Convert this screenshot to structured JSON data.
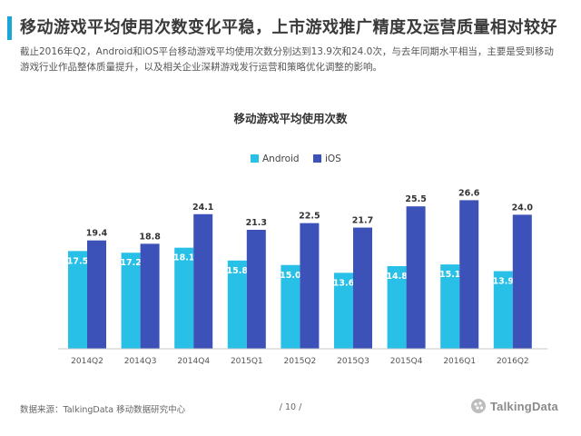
{
  "header": {
    "title": "移动游戏平均使用次数变化平稳，上市游戏推广精度及运营质量相对较好",
    "description": "截止2016年Q2，Android和iOS平台移动游戏平均使用次数分别达到13.9次和24.0次，与去年同期水平相当，主要是受到移动游戏行业作品整体质量提升，以及相关企业深耕游戏发行运营和策略优化调整的影响。"
  },
  "chart_data": {
    "type": "bar",
    "title": "移动游戏平均使用次数",
    "categories": [
      "2014Q2",
      "2014Q3",
      "2014Q4",
      "2015Q1",
      "2015Q2",
      "2015Q3",
      "2015Q4",
      "2016Q1",
      "2016Q2"
    ],
    "series": [
      {
        "name": "Android",
        "color": "#29c0e8",
        "values": [
          17.5,
          17.2,
          18.1,
          15.8,
          15.0,
          13.6,
          14.8,
          15.1,
          13.9
        ]
      },
      {
        "name": "iOS",
        "color": "#3c52b8",
        "values": [
          19.4,
          18.8,
          24.1,
          21.3,
          22.5,
          21.7,
          25.5,
          26.6,
          24.0
        ]
      }
    ],
    "legend_position": "top-center",
    "grid": false,
    "ylim": [
      0,
      30
    ],
    "ylabel": "",
    "xlabel": ""
  },
  "footer": {
    "source": "数据来源：TalkingData  移动数据研究中心",
    "page": "/ 10 /",
    "logo_text": "TalkingData"
  }
}
